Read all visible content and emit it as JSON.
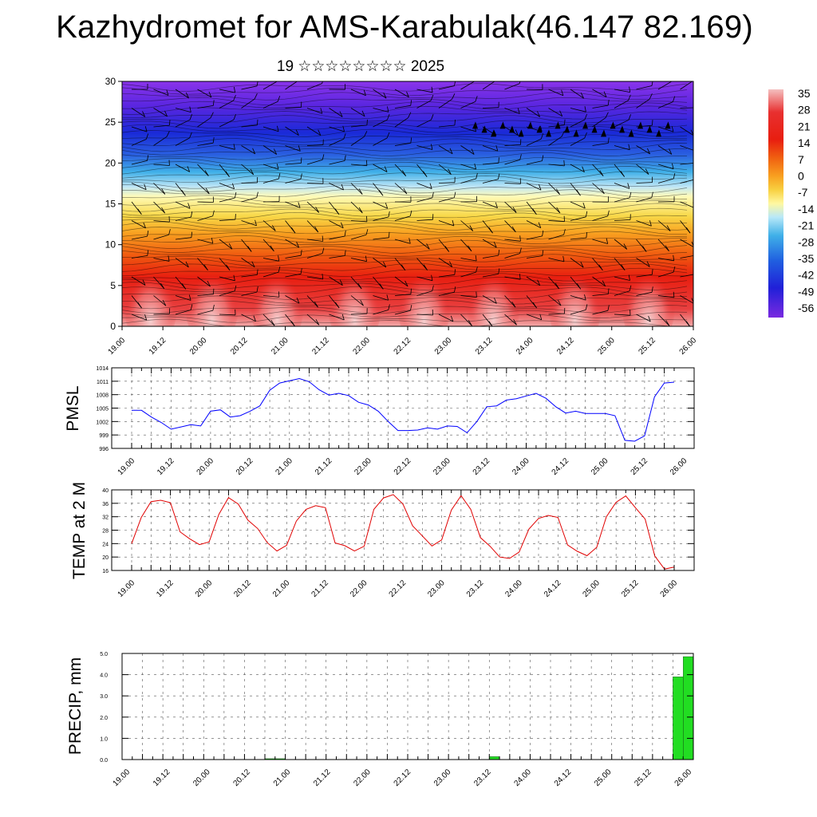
{
  "title": "Kazhydromet for AMS-Karabulak(46.147 82.169)",
  "subtitle": "19 ☆☆☆☆☆☆☆☆ 2025",
  "time_labels": [
    "19.00",
    "19.12",
    "20.00",
    "20.12",
    "21.00",
    "21.12",
    "22.00",
    "22.12",
    "23.00",
    "23.12",
    "24.00",
    "24.12",
    "25.00",
    "25.12",
    "26.00"
  ],
  "colorbar": {
    "labels": [
      "35",
      "28",
      "21",
      "14",
      "7",
      "0",
      "-7",
      "-14",
      "-21",
      "-28",
      "-35",
      "-42",
      "-49",
      "-56"
    ],
    "colors": [
      "#f4c0c0",
      "#e83030",
      "#f06010",
      "#f8a020",
      "#f8d040",
      "#fff8a0",
      "#b8e8f8",
      "#40b0e8",
      "#2060e0",
      "#4020d8",
      "#7a2ae0"
    ]
  },
  "chart_data": [
    {
      "type": "heatmap",
      "title": "",
      "ylabel": "",
      "ylim": [
        0,
        30
      ],
      "yticks": [
        0,
        5,
        10,
        15,
        20,
        25,
        30
      ],
      "xticks": [
        "19.00",
        "19.12",
        "20.00",
        "20.12",
        "21.00",
        "21.12",
        "22.00",
        "22.12",
        "23.00",
        "23.12",
        "24.00",
        "24.12",
        "25.00",
        "25.12",
        "26.00"
      ],
      "bands": [
        {
          "from": 0,
          "to": 9,
          "description": "warm, 14 to 35"
        },
        {
          "from": 9,
          "to": 17,
          "description": "0 to 14"
        },
        {
          "from": 17,
          "to": 22,
          "description": "-14 to -35"
        },
        {
          "from": 22,
          "to": 30,
          "description": "-42 to -56"
        }
      ]
    },
    {
      "type": "line",
      "ylabel": "PMSL",
      "ylim": [
        996,
        1014
      ],
      "yticks": [
        996,
        999,
        1002,
        1005,
        1008,
        1011,
        1014
      ],
      "series": [
        {
          "color": "#0000ff",
          "values": [
            1004.5,
            1004.5,
            1003,
            1001.8,
            1000.3,
            1000.8,
            1001.3,
            1001,
            1004.3,
            1004.6,
            1003,
            1003.3,
            1004.3,
            1005.5,
            1009,
            1010.6,
            1011.1,
            1011.6,
            1010.9,
            1009.1,
            1007.9,
            1008.3,
            1007.8,
            1006.3,
            1005.7,
            1004.3,
            1002,
            1000,
            1000,
            1000.1,
            1000.6,
            1000.3,
            1001,
            1000.9,
            999.5,
            1002,
            1005.3,
            1005.5,
            1006.8,
            1007.1,
            1007.7,
            1008.3,
            1007.2,
            1005.3,
            1003.9,
            1004.3,
            1003.8,
            1003.8,
            1003.8,
            1003.3,
            997.8,
            997.6,
            998.8,
            1007.5,
            1010.6,
            1010.8
          ]
        }
      ]
    },
    {
      "type": "line",
      "ylabel": "TEMP at 2 M",
      "ylim": [
        16,
        40
      ],
      "yticks": [
        16,
        20,
        24,
        28,
        32,
        36,
        40
      ],
      "series": [
        {
          "color": "#e00000",
          "values": [
            24,
            31.8,
            36.5,
            36.9,
            36.2,
            27.5,
            25.4,
            23.7,
            24.5,
            32.7,
            37.7,
            35.8,
            31,
            28.5,
            24.3,
            21.8,
            23.5,
            30.7,
            34.2,
            35.3,
            34.7,
            24.2,
            23.4,
            21.8,
            23.2,
            34.2,
            37.6,
            38.6,
            35.8,
            29.3,
            26.3,
            23.3,
            25.1,
            34,
            38.3,
            34.2,
            25.8,
            23.2,
            20,
            19.6,
            21.5,
            28.3,
            31.5,
            32.4,
            31.8,
            23.6,
            21.7,
            20.4,
            22.9,
            32,
            36.3,
            38.2,
            34.7,
            31.3,
            20.3,
            16.4,
            17
          ]
        }
      ]
    },
    {
      "type": "bar",
      "ylabel": "PRECIP, mm",
      "ylim": [
        0,
        5
      ],
      "yticks": [
        "0.0",
        "1.0",
        "2.0",
        "3.0",
        "4.0",
        "5.0"
      ],
      "bars": [
        {
          "index": 14,
          "value": 0.04
        },
        {
          "index": 15,
          "value": 0.04
        },
        {
          "index": 36,
          "value": 0.14
        },
        {
          "index": 54,
          "value": 3.9
        },
        {
          "index": 55,
          "value": 4.85
        }
      ]
    }
  ]
}
